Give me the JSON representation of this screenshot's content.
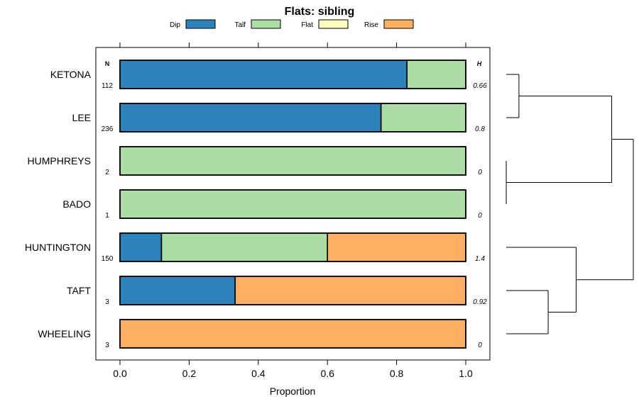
{
  "chart_data": {
    "type": "bar",
    "orientation": "horizontal",
    "stacked": true,
    "title": "Flats: sibling",
    "xlabel": "Proportion",
    "xlim": [
      0,
      1
    ],
    "x_ticks": [
      0.0,
      0.2,
      0.4,
      0.6,
      0.8,
      1.0
    ],
    "x_tick_labels": [
      "0.0",
      "0.2",
      "0.4",
      "0.6",
      "0.8",
      "1.0"
    ],
    "legend": [
      {
        "name": "Dip",
        "color": "#2b83ba"
      },
      {
        "name": "Talf",
        "color": "#abdda4"
      },
      {
        "name": "Flat",
        "color": "#ffffbf"
      },
      {
        "name": "Rise",
        "color": "#fdae61"
      }
    ],
    "n_header": "N",
    "h_header": "H",
    "categories": [
      "KETONA",
      "LEE",
      "HUMPHREYS",
      "BADO",
      "HUNTINGTON",
      "TAFT",
      "WHEELING"
    ],
    "n": [
      "112",
      "236",
      "2",
      "1",
      "150",
      "3",
      "3"
    ],
    "h": [
      "0.66",
      "0.8",
      "0",
      "0",
      "1.4",
      "0.92",
      "0"
    ],
    "series": [
      {
        "name": "Dip",
        "values": [
          0.83,
          0.755,
          0,
          0,
          0.12,
          0.333,
          0
        ]
      },
      {
        "name": "Talf",
        "values": [
          0.17,
          0.245,
          1,
          1,
          0.48,
          0,
          0
        ]
      },
      {
        "name": "Flat",
        "values": [
          0,
          0,
          0,
          0,
          0,
          0,
          0
        ]
      },
      {
        "name": "Rise",
        "values": [
          0,
          0,
          0,
          0,
          0.4,
          0.667,
          1
        ]
      }
    ],
    "dendrogram": {
      "merges": [
        {
          "left": "KETONA",
          "right": "LEE",
          "height": 0.1
        },
        {
          "left": "HUMPHREYS",
          "right": "BADO",
          "height": 0.0
        },
        {
          "left": "TAFT",
          "right": "WHEELING",
          "height": 0.33
        },
        {
          "left": "HUNTINGTON",
          "right": "TAFT+WHEELING",
          "height": 0.55
        },
        {
          "left": "KETONA+LEE",
          "right": "HUMPHREYS+BADO",
          "height": 0.83
        },
        {
          "left": "KETONA+LEE+HUMPHREYS+BADO",
          "right": "HUNTINGTON+TAFT+WHEELING",
          "height": 1.0
        }
      ]
    }
  }
}
